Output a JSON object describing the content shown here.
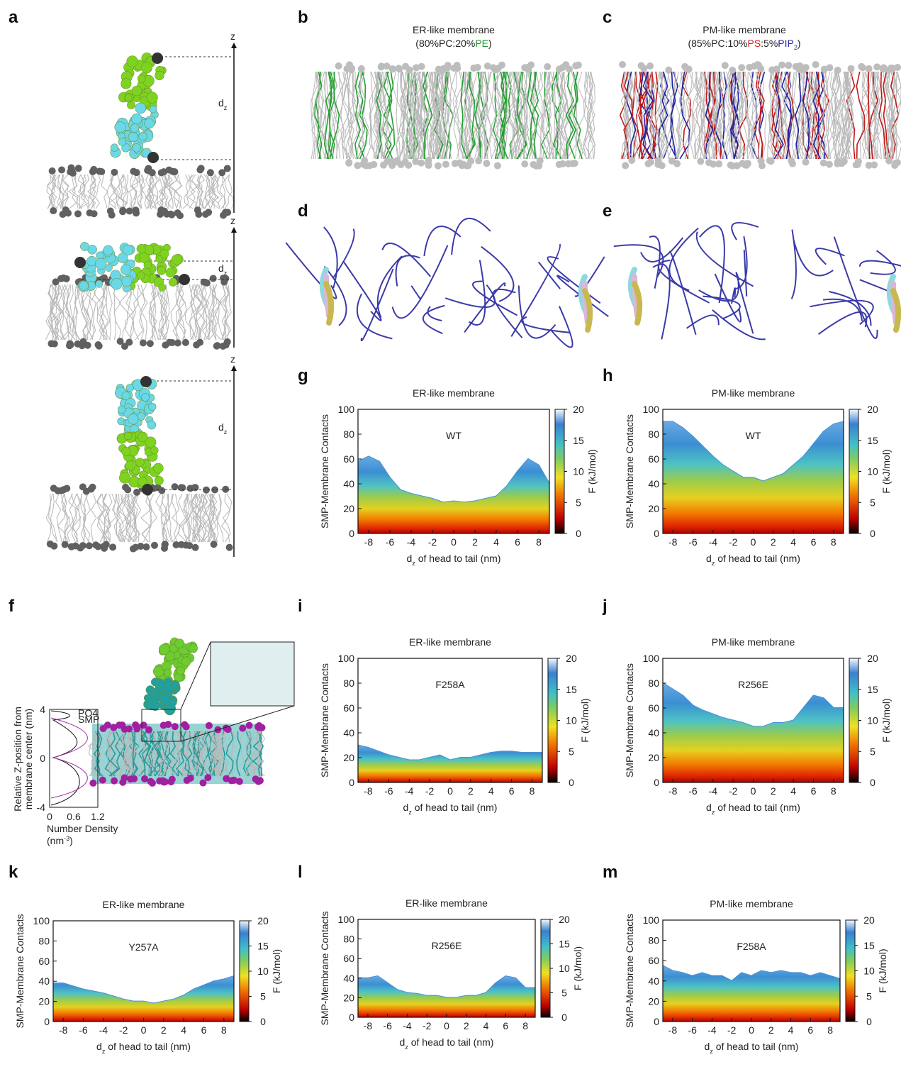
{
  "panel_labels": [
    "a",
    "b",
    "c",
    "d",
    "e",
    "f",
    "g",
    "h",
    "i",
    "j",
    "k",
    "l",
    "m"
  ],
  "a": {
    "axes": [
      {
        "axis": "z",
        "distance": {
          "text": "d",
          "subscript": "z"
        }
      },
      {
        "axis": "z",
        "distance": {
          "text": "d",
          "subscript": "z"
        }
      },
      {
        "axis": "z",
        "distance": {
          "text": "d",
          "subscript": "z"
        }
      }
    ]
  },
  "b": {
    "title": "ER-like membrane",
    "composition": [
      {
        "text": "(80%PC:20%",
        "color": "#222222"
      },
      {
        "text": "PE",
        "color": "#1a9a2a"
      },
      {
        "text": ")",
        "color": "#222222"
      }
    ]
  },
  "c": {
    "title": "PM-like membrane",
    "composition": [
      {
        "text": "(85%PC:10%",
        "color": "#222222"
      },
      {
        "text": "PS",
        "color": "#d42020"
      },
      {
        "text": ":5%",
        "color": "#222222"
      },
      {
        "text": "PIP",
        "color": "#2a2aa8"
      },
      {
        "text": "2",
        "color": "#2a2aa8",
        "subscript": true
      },
      {
        "text": ")",
        "color": "#222222"
      }
    ]
  },
  "f": {
    "ylabel": [
      "Relative Z-position from",
      "membrane center (nm)"
    ],
    "yticks": [
      "4",
      "0",
      "-4"
    ],
    "xticks": [
      "0",
      "0.6",
      "1.2"
    ],
    "xlabel": [
      "Number Density",
      "(nm",
      "-3",
      ")"
    ],
    "legend": [
      "PO4",
      "SMP"
    ]
  },
  "chart_data": [
    {
      "type": "heatmap",
      "title": "ER-like membrane",
      "label": "WT",
      "ylabel": "SMP-Membrane Contacts",
      "xlabel": {
        "text": "d",
        "subscript": "z",
        "after": " of head to tail (nm)"
      },
      "xlim": [
        -9,
        9
      ],
      "ylim": [
        0,
        100
      ],
      "xticks": [
        -8,
        -6,
        -4,
        -2,
        0,
        2,
        4,
        6,
        8
      ],
      "yticks": [
        0,
        20,
        40,
        60,
        80,
        100
      ],
      "colorbar": {
        "label": "F (kJ/mol)",
        "lim": [
          0,
          20
        ],
        "ticks": [
          0,
          5,
          10,
          15,
          20
        ]
      },
      "x": [
        -9,
        -8,
        -7,
        -6,
        -5,
        -4,
        -3,
        -2,
        -1,
        0,
        1,
        2,
        3,
        4,
        5,
        6,
        7,
        8,
        9
      ],
      "contact_edge": [
        58,
        62,
        58,
        45,
        35,
        32,
        30,
        28,
        25,
        26,
        25,
        26,
        28,
        30,
        38,
        50,
        60,
        55,
        40
      ]
    },
    {
      "type": "heatmap",
      "title": "PM-like membrane",
      "label": "WT",
      "ylabel": "SMP-Membrane Contacts",
      "xlabel": {
        "text": "d",
        "subscript": "z",
        "after": " of head to tail (nm)"
      },
      "xlim": [
        -9,
        9
      ],
      "ylim": [
        0,
        100
      ],
      "xticks": [
        -8,
        -6,
        -4,
        -2,
        0,
        2,
        4,
        6,
        8
      ],
      "yticks": [
        0,
        20,
        40,
        60,
        80,
        100
      ],
      "colorbar": {
        "label": "F (kJ/mol)",
        "lim": [
          0,
          20
        ],
        "ticks": [
          0,
          5,
          10,
          15,
          20
        ]
      },
      "x": [
        -9,
        -8,
        -7,
        -6,
        -5,
        -4,
        -3,
        -2,
        -1,
        0,
        1,
        2,
        3,
        4,
        5,
        6,
        7,
        8,
        9
      ],
      "contact_edge": [
        90,
        90,
        85,
        78,
        70,
        62,
        55,
        50,
        45,
        45,
        42,
        45,
        48,
        55,
        62,
        72,
        82,
        88,
        90
      ]
    },
    {
      "type": "heatmap",
      "title": "ER-like membrane",
      "label": "F258A",
      "ylabel": "SMP-Membrane Contacts",
      "xlabel": {
        "text": "d",
        "subscript": "z",
        "after": " of head to tail (nm)"
      },
      "xlim": [
        -9,
        9
      ],
      "ylim": [
        0,
        100
      ],
      "xticks": [
        -8,
        -6,
        -4,
        -2,
        0,
        2,
        4,
        6,
        8
      ],
      "yticks": [
        0,
        20,
        40,
        60,
        80,
        100
      ],
      "colorbar": {
        "label": "F (kJ/mol)",
        "lim": [
          0,
          20
        ],
        "ticks": [
          0,
          5,
          10,
          15,
          20
        ]
      },
      "x": [
        -9,
        -8,
        -7,
        -6,
        -5,
        -4,
        -3,
        -2,
        -1,
        0,
        1,
        2,
        3,
        4,
        5,
        6,
        7,
        8,
        9
      ],
      "contact_edge": [
        30,
        28,
        25,
        22,
        20,
        18,
        18,
        20,
        22,
        18,
        20,
        20,
        22,
        24,
        25,
        25,
        24,
        24,
        24
      ]
    },
    {
      "type": "heatmap",
      "title": "PM-like membrane",
      "label": "R256E",
      "ylabel": "SMP-Membrane Contacts",
      "xlabel": {
        "text": "d",
        "subscript": "z",
        "after": " of head to tail (nm)"
      },
      "xlim": [
        -9,
        9
      ],
      "ylim": [
        0,
        100
      ],
      "xticks": [
        -8,
        -6,
        -4,
        -2,
        0,
        2,
        4,
        6,
        8
      ],
      "yticks": [
        0,
        20,
        40,
        60,
        80,
        100
      ],
      "colorbar": {
        "label": "F (kJ/mol)",
        "lim": [
          0,
          20
        ],
        "ticks": [
          0,
          5,
          10,
          15,
          20
        ]
      },
      "x": [
        -9,
        -8,
        -7,
        -6,
        -5,
        -4,
        -3,
        -2,
        -1,
        0,
        1,
        2,
        3,
        4,
        5,
        6,
        7,
        8,
        9
      ],
      "contact_edge": [
        80,
        75,
        70,
        62,
        58,
        55,
        52,
        50,
        48,
        45,
        45,
        48,
        48,
        50,
        60,
        70,
        68,
        60,
        60
      ]
    },
    {
      "type": "heatmap",
      "title": "ER-like membrane",
      "label": "Y257A",
      "ylabel": "SMP-Membrane Contacts",
      "xlabel": {
        "text": "d",
        "subscript": "z",
        "after": " of head to tail (nm)"
      },
      "xlim": [
        -9,
        9
      ],
      "ylim": [
        0,
        100
      ],
      "xticks": [
        -8,
        -6,
        -4,
        -2,
        0,
        2,
        4,
        6,
        8
      ],
      "yticks": [
        0,
        20,
        40,
        60,
        80,
        100
      ],
      "colorbar": {
        "label": "F (kJ/mol)",
        "lim": [
          0,
          20
        ],
        "ticks": [
          0,
          5,
          10,
          15,
          20
        ]
      },
      "x": [
        -9,
        -8,
        -7,
        -6,
        -5,
        -4,
        -3,
        -2,
        -1,
        0,
        1,
        2,
        3,
        4,
        5,
        6,
        7,
        8,
        9
      ],
      "contact_edge": [
        38,
        38,
        35,
        32,
        30,
        28,
        25,
        22,
        20,
        20,
        18,
        20,
        22,
        26,
        32,
        36,
        40,
        42,
        45
      ]
    },
    {
      "type": "heatmap",
      "title": "ER-like membrane",
      "label": "R256E",
      "ylabel": "SMP-Membrane Contacts",
      "xlabel": {
        "text": "d",
        "subscript": "z",
        "after": " of head to tail (nm)"
      },
      "xlim": [
        -9,
        9
      ],
      "ylim": [
        0,
        100
      ],
      "xticks": [
        -8,
        -6,
        -4,
        -2,
        0,
        2,
        4,
        6,
        8
      ],
      "yticks": [
        0,
        20,
        40,
        60,
        80,
        100
      ],
      "colorbar": {
        "label": "F (kJ/mol)",
        "lim": [
          0,
          20
        ],
        "ticks": [
          0,
          5,
          10,
          15,
          20
        ]
      },
      "x": [
        -9,
        -8,
        -7,
        -6,
        -5,
        -4,
        -3,
        -2,
        -1,
        0,
        1,
        2,
        3,
        4,
        5,
        6,
        7,
        8,
        9
      ],
      "contact_edge": [
        40,
        40,
        42,
        35,
        28,
        25,
        24,
        22,
        22,
        20,
        20,
        22,
        22,
        25,
        35,
        42,
        40,
        30,
        30
      ]
    },
    {
      "type": "heatmap",
      "title": "PM-like membrane",
      "label": "F258A",
      "ylabel": "SMP-Membrane Contacts",
      "xlabel": {
        "text": "d",
        "subscript": "z",
        "after": " of head to tail (nm)"
      },
      "xlim": [
        -9,
        9
      ],
      "ylim": [
        0,
        100
      ],
      "xticks": [
        -8,
        -6,
        -4,
        -2,
        0,
        2,
        4,
        6,
        8
      ],
      "yticks": [
        0,
        20,
        40,
        60,
        80,
        100
      ],
      "colorbar": {
        "label": "F (kJ/mol)",
        "lim": [
          0,
          20
        ],
        "ticks": [
          0,
          5,
          10,
          15,
          20
        ]
      },
      "x": [
        -9,
        -8,
        -7,
        -6,
        -5,
        -4,
        -3,
        -2,
        -1,
        0,
        1,
        2,
        3,
        4,
        5,
        6,
        7,
        8,
        9
      ],
      "contact_edge": [
        55,
        50,
        48,
        45,
        48,
        45,
        45,
        40,
        48,
        45,
        50,
        48,
        50,
        48,
        48,
        45,
        48,
        45,
        42
      ]
    }
  ]
}
